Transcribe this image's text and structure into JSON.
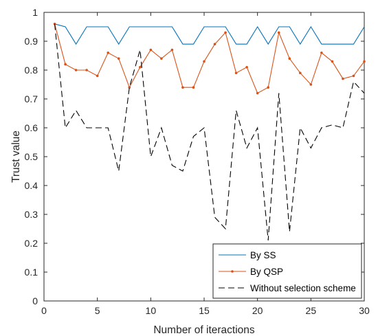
{
  "chart_data": {
    "type": "line",
    "xlabel": "Number of iteractions",
    "ylabel": "Trust value",
    "xlim": [
      0,
      30
    ],
    "ylim": [
      0,
      1
    ],
    "xticks": [
      0,
      5,
      10,
      15,
      20,
      25,
      30
    ],
    "yticks": [
      0,
      0.1,
      0.2,
      0.3,
      0.4,
      0.5,
      0.6,
      0.7,
      0.8,
      0.9,
      1
    ],
    "grid": false,
    "legend_position": "bottom-right",
    "x": [
      1,
      2,
      3,
      4,
      5,
      6,
      7,
      8,
      9,
      10,
      11,
      12,
      13,
      14,
      15,
      16,
      17,
      18,
      19,
      20,
      21,
      22,
      23,
      24,
      25,
      26,
      27,
      28,
      29,
      30
    ],
    "series": [
      {
        "name": "By SS",
        "color": "#0072BD",
        "style": "solid",
        "marker": "none",
        "values": [
          0.96,
          0.95,
          0.89,
          0.95,
          0.95,
          0.95,
          0.89,
          0.95,
          0.95,
          0.95,
          0.95,
          0.95,
          0.89,
          0.89,
          0.95,
          0.95,
          0.95,
          0.89,
          0.89,
          0.95,
          0.89,
          0.95,
          0.95,
          0.89,
          0.95,
          0.89,
          0.89,
          0.89,
          0.89,
          0.95
        ]
      },
      {
        "name": "By QSP",
        "color": "#D95319",
        "style": "solid",
        "marker": "dot",
        "values": [
          0.96,
          0.82,
          0.8,
          0.8,
          0.78,
          0.86,
          0.84,
          0.74,
          0.81,
          0.87,
          0.84,
          0.87,
          0.74,
          0.74,
          0.83,
          0.89,
          0.93,
          0.79,
          0.81,
          0.72,
          0.74,
          0.93,
          0.84,
          0.79,
          0.75,
          0.86,
          0.83,
          0.77,
          0.78,
          0.83
        ]
      },
      {
        "name": "Without selection scheme",
        "color": "#000000",
        "style": "dashed",
        "marker": "none",
        "values": [
          0.96,
          0.6,
          0.66,
          0.6,
          0.6,
          0.6,
          0.45,
          0.74,
          0.87,
          0.5,
          0.6,
          0.47,
          0.45,
          0.57,
          0.6,
          0.29,
          0.25,
          0.66,
          0.53,
          0.6,
          0.21,
          0.72,
          0.24,
          0.6,
          0.53,
          0.6,
          0.61,
          0.6,
          0.76,
          0.72
        ]
      }
    ]
  }
}
